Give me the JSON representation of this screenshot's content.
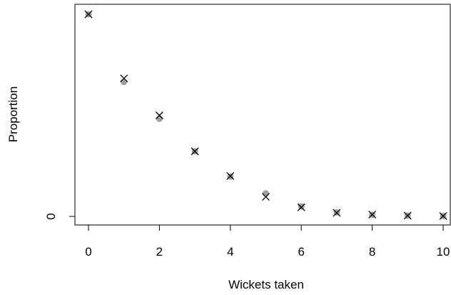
{
  "chart_data": {
    "type": "scatter",
    "xlabel": "Wickets taken",
    "ylabel": "Proportion",
    "xlim": [
      0,
      10
    ],
    "x_ticks": [
      "0",
      "2",
      "4",
      "6",
      "8",
      "10"
    ],
    "y_ticks": [
      "0"
    ],
    "grid": false,
    "series": [
      {
        "marker": "filled-circle",
        "color": "#a0a0a0",
        "x": [
          0,
          1,
          2,
          3,
          4,
          5,
          6,
          7,
          8,
          9,
          10
        ],
        "y": [
          1.0,
          0.665,
          0.483,
          0.322,
          0.197,
          0.114,
          0.05,
          0.02,
          0.008,
          0.004,
          0.002
        ]
      },
      {
        "marker": "cross",
        "color": "#000000",
        "x": [
          0,
          1,
          2,
          3,
          4,
          5,
          6,
          7,
          8,
          9,
          10
        ],
        "y": [
          1.0,
          0.683,
          0.5,
          0.322,
          0.2,
          0.097,
          0.045,
          0.018,
          0.009,
          0.004,
          0.002
        ]
      }
    ]
  }
}
